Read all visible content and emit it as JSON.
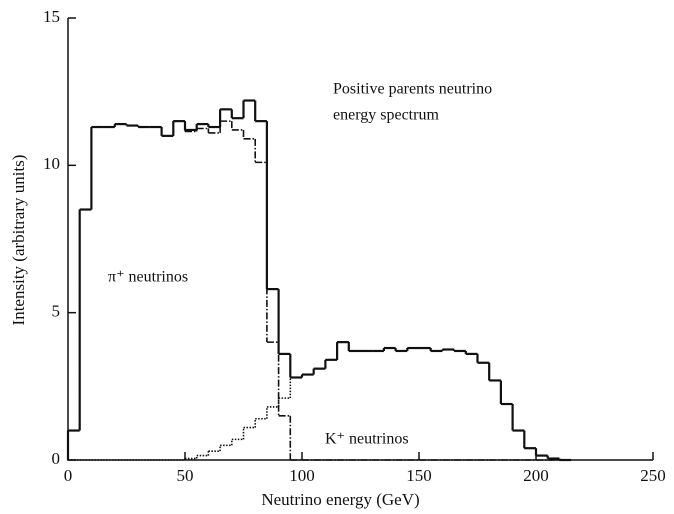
{
  "chart_data": {
    "type": "histogram",
    "xlabel": "Neutrino energy (GeV)",
    "ylabel": "Intensity (arbitrary units)",
    "annotation": [
      "Positive parents neutrino",
      "energy spectrum"
    ],
    "xlim": [
      0,
      250
    ],
    "ylim": [
      0,
      15
    ],
    "xticks": [
      0,
      50,
      100,
      150,
      200,
      250
    ],
    "yticks": [
      0,
      5,
      10,
      15
    ],
    "bins": [
      0,
      5,
      10,
      15,
      20,
      25,
      30,
      35,
      40,
      45,
      50,
      55,
      60,
      65,
      70,
      75,
      80,
      85,
      90,
      95,
      100,
      105,
      110,
      115,
      120,
      125,
      130,
      135,
      140,
      145,
      150,
      155,
      160,
      165,
      170,
      175,
      180,
      185,
      190,
      195,
      200,
      205,
      210,
      215
    ],
    "series": [
      {
        "color": "#111111",
        "style": "solid",
        "values": [
          1.0,
          8.5,
          11.3,
          11.3,
          11.4,
          11.35,
          11.3,
          11.3,
          11.0,
          11.5,
          11.2,
          11.4,
          11.3,
          11.9,
          11.6,
          12.2,
          11.5,
          5.8,
          3.6,
          2.8,
          2.9,
          3.1,
          3.4,
          4.0,
          3.7,
          3.7,
          3.7,
          3.8,
          3.7,
          3.8,
          3.8,
          3.7,
          3.75,
          3.7,
          3.6,
          3.3,
          2.7,
          1.9,
          1.0,
          0.4,
          0.15,
          0.05,
          0
        ]
      },
      {
        "name": "π⁺ neutrinos",
        "color": "#111111",
        "style": "dashdot",
        "values": [
          1.0,
          8.5,
          11.3,
          11.3,
          11.4,
          11.35,
          11.3,
          11.3,
          11.0,
          11.5,
          11.15,
          11.25,
          11.1,
          11.5,
          11.2,
          10.9,
          10.1,
          4.0,
          1.5,
          0,
          0,
          0,
          0,
          0,
          0,
          0,
          0,
          0,
          0,
          0,
          0,
          0,
          0,
          0,
          0,
          0,
          0,
          0,
          0,
          0,
          0,
          0,
          0
        ]
      },
      {
        "name": "K⁺ neutrinos",
        "color": "#111111",
        "style": "dotted",
        "values": [
          0,
          0,
          0,
          0,
          0,
          0,
          0,
          0,
          0,
          0,
          0.05,
          0.15,
          0.3,
          0.5,
          0.7,
          1.1,
          1.4,
          1.8,
          2.1,
          2.8,
          2.9,
          3.1,
          3.4,
          4.0,
          3.7,
          3.7,
          3.7,
          3.8,
          3.7,
          3.8,
          3.8,
          3.7,
          3.75,
          3.7,
          3.6,
          3.3,
          2.7,
          1.9,
          1.0,
          0.4,
          0.15,
          0.05,
          0
        ]
      }
    ]
  }
}
